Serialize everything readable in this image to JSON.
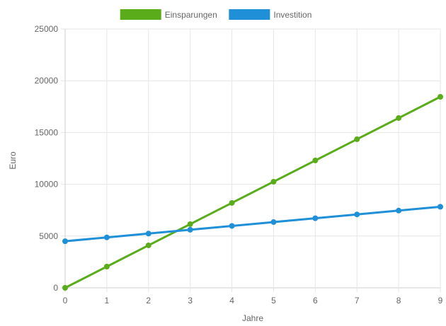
{
  "chart_data": {
    "type": "line",
    "x": [
      0,
      1,
      2,
      3,
      4,
      5,
      6,
      7,
      8,
      9
    ],
    "series": [
      {
        "name": "Einsparungen",
        "color": "#5aac1a",
        "values": [
          0,
          2050,
          4100,
          6150,
          8200,
          10250,
          12300,
          14350,
          16400,
          18450
        ]
      },
      {
        "name": "Investition",
        "color": "#1f8fd8",
        "values": [
          4500,
          4870,
          5240,
          5610,
          5980,
          6350,
          6720,
          7090,
          7460,
          7830
        ]
      }
    ],
    "xlabel": "Jahre",
    "ylabel": "Euro",
    "ylim": [
      0,
      25000
    ],
    "yticks": [
      0,
      5000,
      10000,
      15000,
      20000,
      25000
    ],
    "grid": true,
    "legend_position": "top"
  }
}
